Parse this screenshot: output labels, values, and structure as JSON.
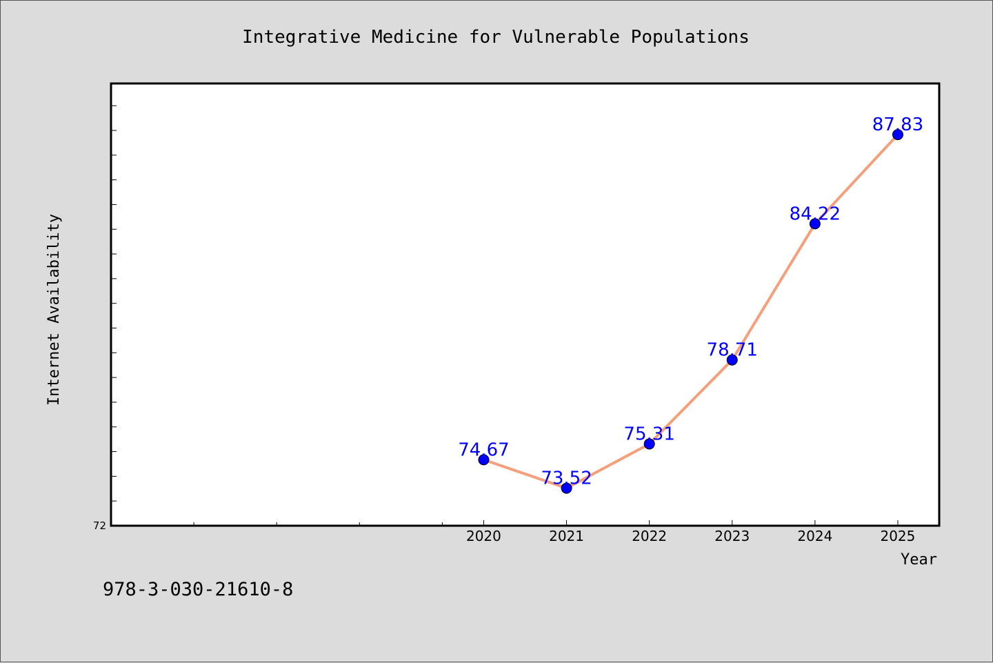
{
  "isbn": "978-3-030-21610-8",
  "chart_data": {
    "type": "line",
    "title": "Integrative Medicine for Vulnerable Populations",
    "xlabel": "Year",
    "ylabel": "Internet Availability",
    "x": [
      "2020",
      "2021",
      "2022",
      "2023",
      "2024",
      "2025"
    ],
    "series": [
      {
        "values": [
          74.67,
          73.52,
          75.31,
          78.71,
          84.22,
          87.83
        ],
        "line_color": "#f4a07c",
        "marker_color": "#0000ff",
        "label_color": "#0000ff"
      }
    ],
    "y_tick_label": "72",
    "ylim": [
      72,
      89.9
    ],
    "x_minor_positions": [
      2015.5,
      2016.5,
      2017.5,
      2018.5,
      2019.5
    ],
    "xlim": [
      2015.5,
      2025.5
    ],
    "y_minor_step": 1,
    "grid": false,
    "legend": "none"
  }
}
